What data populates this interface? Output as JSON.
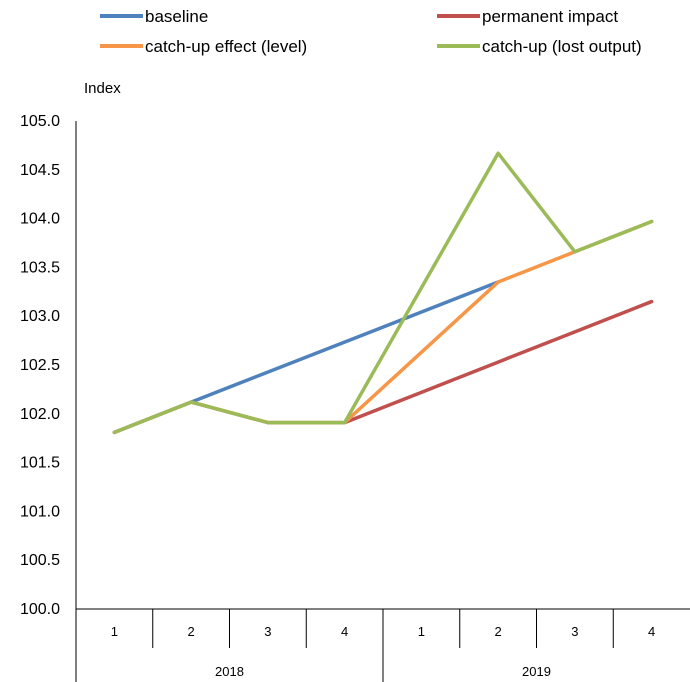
{
  "chart_data": {
    "type": "line",
    "ylabel": "Index",
    "ylim": [
      100.0,
      105.0
    ],
    "yticks": [
      "100.0",
      "100.5",
      "101.0",
      "101.5",
      "102.0",
      "102.5",
      "103.0",
      "103.5",
      "104.0",
      "104.5",
      "105.0"
    ],
    "categories": [
      "1",
      "2",
      "3",
      "4",
      "1",
      "2",
      "3",
      "4"
    ],
    "groups": [
      {
        "label": "2018",
        "count": 4
      },
      {
        "label": "2019",
        "count": 4
      }
    ],
    "legend_position": "top",
    "grid": false,
    "series": [
      {
        "name": "baseline",
        "color": "#4F81BD",
        "values": [
          101.81,
          102.12,
          null,
          null,
          null,
          103.35,
          null,
          null
        ]
      },
      {
        "name": "catch-up effect (level)",
        "color": "#F79646",
        "values": [
          101.81,
          102.12,
          101.91,
          101.91,
          null,
          103.35,
          103.66,
          103.97
        ]
      },
      {
        "name": "permanent impact",
        "color": "#C0504D",
        "values": [
          101.81,
          102.12,
          101.91,
          101.91,
          102.22,
          102.53,
          102.84,
          103.15
        ]
      },
      {
        "name": "catch-up (lost output)",
        "color": "#9BBB59",
        "values": [
          101.81,
          102.12,
          101.91,
          101.91,
          103.29,
          104.67,
          103.66,
          103.97
        ]
      }
    ]
  }
}
